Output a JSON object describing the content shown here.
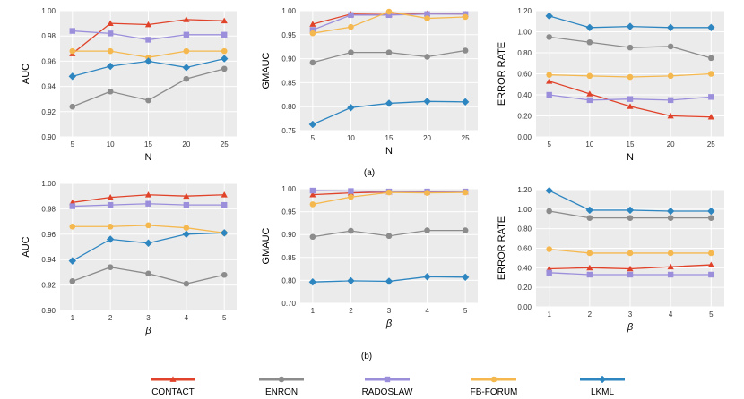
{
  "figure": {
    "captions": [
      "(a)",
      "(b)"
    ],
    "colors": {
      "CONTACT": "#e0432a",
      "ENRON": "#8c8c8c",
      "RADOSLAW": "#9b8fdc",
      "FB-FORUM": "#f5b84e",
      "LKML": "#2e86c1",
      "panel_bg": "#ebebeb",
      "grid": "#ffffff"
    },
    "legend": [
      {
        "name": "CONTACT",
        "marker": "triangle"
      },
      {
        "name": "ENRON",
        "marker": "circle"
      },
      {
        "name": "RADOSLAW",
        "marker": "square"
      },
      {
        "name": "FB-FORUM",
        "marker": "circle"
      },
      {
        "name": "LKML",
        "marker": "diamond"
      }
    ]
  },
  "chart_data": [
    {
      "type": "line",
      "id": "a1",
      "ylabel": "AUC",
      "xlabel": "N",
      "ylim": [
        0.9,
        1.0
      ],
      "yticks": [
        "0.90",
        "0.92",
        "0.94",
        "0.96",
        "0.98",
        "1.00"
      ],
      "categories": [
        "5",
        "10",
        "15",
        "20",
        "25"
      ],
      "series": [
        {
          "name": "CONTACT",
          "values": [
            0.966,
            0.99,
            0.989,
            0.993,
            0.992
          ]
        },
        {
          "name": "ENRON",
          "values": [
            0.924,
            0.936,
            0.929,
            0.946,
            0.954
          ]
        },
        {
          "name": "RADOSLAW",
          "values": [
            0.984,
            0.982,
            0.977,
            0.981,
            0.981
          ]
        },
        {
          "name": "FB-FORUM",
          "values": [
            0.968,
            0.968,
            0.963,
            0.968,
            0.968
          ]
        },
        {
          "name": "LKML",
          "values": [
            0.948,
            0.956,
            0.96,
            0.955,
            0.962
          ]
        }
      ]
    },
    {
      "type": "line",
      "id": "a2",
      "ylabel": "GMAUC",
      "xlabel": "N",
      "ylim": [
        0.75,
        1.0
      ],
      "yticks": [
        "0.75",
        "0.80",
        "0.85",
        "0.90",
        "0.95",
        "1.00"
      ],
      "categories": [
        "5",
        "10",
        "15",
        "20",
        "25"
      ],
      "series": [
        {
          "name": "CONTACT",
          "values": [
            0.972,
            0.993,
            0.992,
            0.994,
            0.993
          ]
        },
        {
          "name": "ENRON",
          "values": [
            0.892,
            0.913,
            0.913,
            0.904,
            0.917
          ]
        },
        {
          "name": "RADOSLAW",
          "values": [
            0.96,
            0.991,
            0.991,
            0.993,
            0.993
          ]
        },
        {
          "name": "FB-FORUM",
          "values": [
            0.953,
            0.966,
            0.998,
            0.984,
            0.987
          ]
        },
        {
          "name": "LKML",
          "values": [
            0.763,
            0.798,
            0.807,
            0.811,
            0.81
          ]
        }
      ]
    },
    {
      "type": "line",
      "id": "a3",
      "ylabel": "ERROR RATE",
      "xlabel": "N",
      "ylim": [
        0.0,
        1.2
      ],
      "yticks": [
        "0.00",
        "0.20",
        "0.40",
        "0.60",
        "0.80",
        "1.00",
        "1.20"
      ],
      "categories": [
        "5",
        "10",
        "15",
        "20",
        "25"
      ],
      "series": [
        {
          "name": "CONTACT",
          "values": [
            0.53,
            0.41,
            0.29,
            0.2,
            0.19
          ]
        },
        {
          "name": "ENRON",
          "values": [
            0.95,
            0.9,
            0.85,
            0.86,
            0.75
          ]
        },
        {
          "name": "RADOSLAW",
          "values": [
            0.4,
            0.35,
            0.36,
            0.35,
            0.38
          ]
        },
        {
          "name": "FB-FORUM",
          "values": [
            0.59,
            0.58,
            0.57,
            0.58,
            0.6
          ]
        },
        {
          "name": "LKML",
          "values": [
            1.15,
            1.04,
            1.05,
            1.04,
            1.04
          ]
        }
      ]
    },
    {
      "type": "line",
      "id": "b1",
      "ylabel": "AUC",
      "xlabel": "β",
      "ylim": [
        0.9,
        1.0
      ],
      "yticks": [
        "0.90",
        "0.92",
        "0.94",
        "0.96",
        "0.98",
        "1.00"
      ],
      "categories": [
        "1",
        "2",
        "3",
        "4",
        "5"
      ],
      "series": [
        {
          "name": "CONTACT",
          "values": [
            0.985,
            0.989,
            0.991,
            0.99,
            0.991
          ]
        },
        {
          "name": "ENRON",
          "values": [
            0.923,
            0.934,
            0.929,
            0.921,
            0.928
          ]
        },
        {
          "name": "RADOSLAW",
          "values": [
            0.982,
            0.983,
            0.984,
            0.983,
            0.983
          ]
        },
        {
          "name": "FB-FORUM",
          "values": [
            0.966,
            0.966,
            0.967,
            0.965,
            0.961
          ]
        },
        {
          "name": "LKML",
          "values": [
            0.939,
            0.956,
            0.953,
            0.96,
            0.961
          ]
        }
      ]
    },
    {
      "type": "line",
      "id": "b2",
      "ylabel": "GMAUC",
      "xlabel": "β",
      "ylim": [
        0.7,
        1.0
      ],
      "yticks": [
        "0.70",
        "0.80",
        "0.85",
        "0.90",
        "0.95",
        "1.00"
      ],
      "categories": [
        "1",
        "2",
        "3",
        "4",
        "5"
      ],
      "series": [
        {
          "name": "CONTACT",
          "values": [
            0.987,
            0.991,
            0.993,
            0.993,
            0.993
          ]
        },
        {
          "name": "ENRON",
          "values": [
            0.895,
            0.908,
            0.897,
            0.909,
            0.909
          ]
        },
        {
          "name": "RADOSLAW",
          "values": [
            0.996,
            0.995,
            0.994,
            0.994,
            0.994
          ]
        },
        {
          "name": "FB-FORUM",
          "values": [
            0.966,
            0.982,
            0.992,
            0.991,
            0.992
          ]
        },
        {
          "name": "LKML",
          "values": [
            0.793,
            0.798,
            0.796,
            0.808,
            0.807
          ]
        }
      ]
    },
    {
      "type": "line",
      "id": "b3",
      "ylabel": "ERROR RATE",
      "xlabel": "β",
      "ylim": [
        0.0,
        1.2
      ],
      "yticks": [
        "0.00",
        "0.20",
        "0.40",
        "0.60",
        "0.80",
        "1.00",
        "1.20"
      ],
      "categories": [
        "1",
        "2",
        "3",
        "4",
        "5"
      ],
      "series": [
        {
          "name": "CONTACT",
          "values": [
            0.39,
            0.4,
            0.39,
            0.41,
            0.43
          ]
        },
        {
          "name": "ENRON",
          "values": [
            0.98,
            0.91,
            0.91,
            0.91,
            0.91
          ]
        },
        {
          "name": "RADOSLAW",
          "values": [
            0.35,
            0.33,
            0.33,
            0.33,
            0.33
          ]
        },
        {
          "name": "FB-FORUM",
          "values": [
            0.59,
            0.55,
            0.55,
            0.55,
            0.55
          ]
        },
        {
          "name": "LKML",
          "values": [
            1.19,
            0.99,
            0.99,
            0.98,
            0.98
          ]
        }
      ]
    }
  ]
}
